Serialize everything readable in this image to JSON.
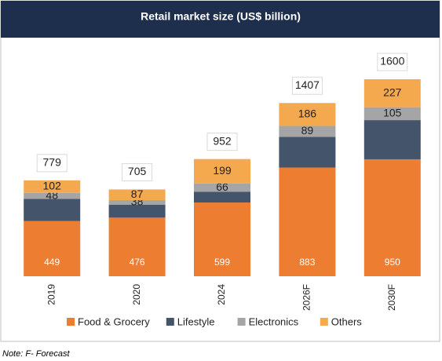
{
  "chart_data": {
    "type": "stacked_bar",
    "title": "Retail market size (US$ billion)",
    "categories": [
      "2019",
      "2020",
      "2024",
      "2026F",
      "2030F"
    ],
    "series": [
      {
        "name": "Food & Grocery",
        "color": "#ED7D31",
        "values": [
          449,
          476,
          599,
          883,
          950
        ]
      },
      {
        "name": "Lifestyle",
        "color": "#44546A",
        "values": [
          180,
          104,
          88,
          249,
          318
        ]
      },
      {
        "name": "Electronics",
        "color": "#A5A5A5",
        "values": [
          48,
          38,
          66,
          89,
          105
        ]
      },
      {
        "name": "Others",
        "color": "#F5A94F",
        "values": [
          102,
          87,
          199,
          186,
          227
        ]
      }
    ],
    "labeled_series": [
      0,
      2,
      3
    ],
    "totals": [
      779,
      705,
      952,
      1407,
      1600
    ],
    "note": "Note: F- Forecast"
  }
}
